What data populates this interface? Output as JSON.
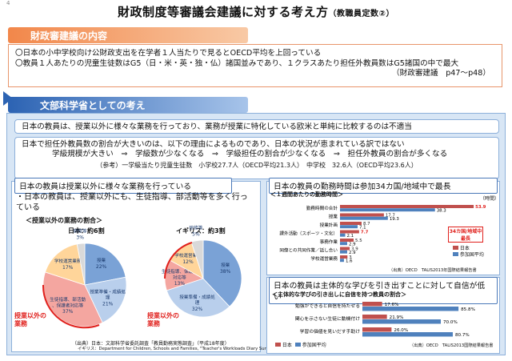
{
  "page_number": "4",
  "title": "財政制度等審議会建議に対する考え方",
  "title_suffix": "（教職員定数②）",
  "section1": {
    "header": "財政審建議の内容",
    "lines": [
      "〇日本の小中学校向け公財政支出を在学者１人当たりで見るとOECD平均を上回っている",
      "〇教員１人あたりの児童生徒数はG5（日・米・英・独・仏）諸国並みであり、１クラスあたり担任外教員数はG5諸国の中で最大"
    ],
    "source": "（財政審建議　p47～p48）"
  },
  "section2": {
    "header": "文部科学省としての考え",
    "line1": "日本の教員は、授業以外に様々な業務を行っており、業務が授業に特化している欧米と単純に比較するのは不適当",
    "line2a": "日本で担任外教員数の割合が大きいのは、以下の理由によるものであり、日本の状況が恵まれている訳ではない",
    "line2b": "学級規模が大きい　⇒　学級数が少なくなる　⇒　学級担任の割合が少なくなる　⇒　担任外教員の割合が多くなる",
    "line2c": "（参考）一学級当たり児童生徒数　小学校27.7人（OECD平均21.3人）　中学校　32.6人（OECD平均23.6人）"
  },
  "left_panel": {
    "header": "日本の教員は授業以外に様々な業務を行っている",
    "bullet": "・日本の教員は、授業以外にも、生徒指導、部活動等を多く行っている",
    "subhead": "＜授業以外の業務の割合＞",
    "japan_label": "日本：約6割",
    "uk_label": "イギリス：約3割",
    "callout_jp": "授業以外の業務",
    "callout_uk": "授業以外の業務",
    "source1": "（出典）日本：文部科学省委託調査「教員勤務実態調査」（平成18年度）",
    "source2": "イギリス：Department for Children, Schools and Families, \"Teacher's Workloads Diary Survey 2009\""
  },
  "right_panel1": {
    "header": "日本の教員の勤務時間は参加34カ国/地域中で最長",
    "subhead": "＜１週間あたりの勤務時間＞",
    "unit": "（時間）",
    "callout": "34カ国/地域中最長",
    "legend_jp": "日本",
    "legend_avg": "参加国平均",
    "source": "（出典）OECD　TALIS2013年国際結果報告書"
  },
  "right_panel2": {
    "header": "日本の教員は主体的な学びを引き出すことに対して自信が低い",
    "subhead": "＜主体的な学びの引き出しに自信を持つ教員の割合＞",
    "legend_jp": "日本",
    "legend_avg": "参加国平均",
    "source": "（出典）OECD　TALIS2013国際結果報告書"
  },
  "chart_data": [
    {
      "type": "pie",
      "title": "日本：約6割",
      "labels": [
        "授業",
        "授業準備・成績処理",
        "生徒指導、部活動、保護者対応等",
        "学校運営業務",
        "研修等"
      ],
      "values": [
        22,
        21,
        37,
        17,
        3
      ]
    },
    {
      "type": "pie",
      "title": "イギリス：約3割",
      "labels": [
        "授業",
        "授業準備・成績処理",
        "生徒指導、保護者対応等",
        "学校運営業務",
        "研修等"
      ],
      "values": [
        38,
        32,
        13,
        12,
        5
      ]
    },
    {
      "type": "bar",
      "title": "１週間あたりの勤務時間",
      "categories": [
        "勤務時間の合計",
        "授業",
        "授業計画",
        "課外活動（スポーツ・文化）",
        "事務作業",
        "同僚との共同作業／話し合い",
        "学校運営業務"
      ],
      "series": [
        {
          "name": "日本",
          "values": [
            53.9,
            17.7,
            8.7,
            7.7,
            5.5,
            3.9,
            3.0
          ]
        },
        {
          "name": "参加国平均",
          "values": [
            38.3,
            19.3,
            7.1,
            2.1,
            2.9,
            2.9,
            1.6
          ]
        }
      ]
    },
    {
      "type": "bar",
      "title": "主体的な学びの引き出しに自信を持つ教員の割合",
      "categories": [
        "勉強ができると自信を持たせる",
        "関心を示さない生徒に動機付け",
        "学習の価値を見いだす手助け"
      ],
      "series": [
        {
          "name": "日本",
          "values": [
            "17.6%",
            "21.9%",
            "26.0%"
          ]
        },
        {
          "name": "参加国平均",
          "values": [
            "85.8%",
            "70.0%",
            "80.7%"
          ]
        }
      ]
    }
  ],
  "colors": {
    "orange": "#f2874a",
    "blue": "#2c63b3",
    "japan_bar": "#c0504d",
    "avg_bar": "#4f81bd"
  }
}
